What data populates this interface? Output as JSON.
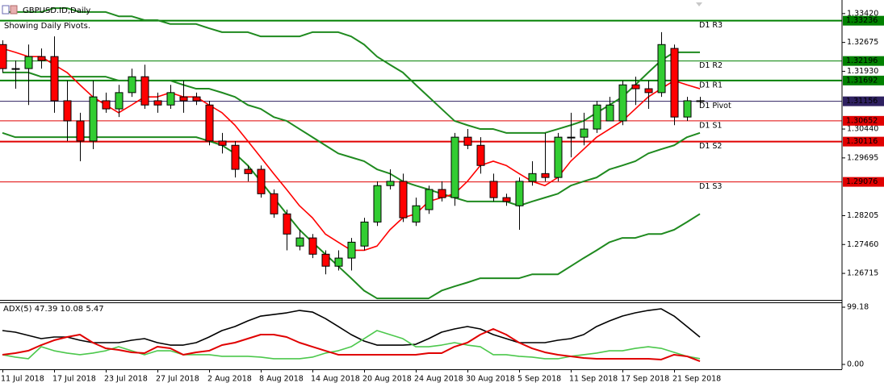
{
  "chart_data": [
    {
      "type": "candlestick",
      "title": "GBPUSD.ID,Daily",
      "subtitle": "Showing Daily Pivots.",
      "categories": [
        "11 Jul 2018",
        null,
        null,
        null,
        "17 Jul 2018",
        null,
        null,
        null,
        "23 Jul 2018",
        null,
        null,
        null,
        "27 Jul 2018",
        null,
        null,
        null,
        "2 Aug 2018",
        null,
        null,
        null,
        "8 Aug 2018",
        null,
        null,
        null,
        "14 Aug 2018",
        null,
        null,
        null,
        "20 Aug 2018",
        null,
        null,
        null,
        "24 Aug 2018",
        null,
        null,
        null,
        "30 Aug 2018",
        null,
        null,
        null,
        "5 Sep 2018",
        null,
        null,
        null,
        "11 Sep 2018",
        null,
        null,
        null,
        "17 Sep 2018",
        null,
        null,
        null,
        "21 Sep 2018",
        null,
        null
      ],
      "open": [
        1.3262,
        1.32,
        1.32,
        1.3231,
        1.3231,
        1.3117,
        1.3065,
        1.3013,
        1.3117,
        1.3096,
        1.3138,
        1.3179,
        1.3117,
        1.3106,
        1.3127,
        1.3127,
        1.3106,
        1.3013,
        1.3002,
        1.294,
        1.294,
        1.2877,
        1.2825,
        1.2742,
        1.2763,
        1.2721,
        1.269,
        1.2711,
        1.2742,
        1.2804,
        1.2898,
        1.2909,
        1.2804,
        1.2836,
        1.2888,
        1.2867,
        1.3023,
        1.3002,
        1.2909,
        1.2867,
        1.2846,
        1.2909,
        1.2929,
        1.2919,
        1.3023,
        1.3023,
        1.3044,
        1.3065,
        1.3065,
        1.3158,
        1.3148,
        1.3138,
        1.3252,
        1.3075,
        1.3117
      ],
      "high": [
        1.3273,
        1.3221,
        1.3262,
        1.3252,
        1.3283,
        1.3169,
        1.3086,
        1.3169,
        1.3138,
        1.3158,
        1.32,
        1.321,
        1.3138,
        1.3158,
        1.3169,
        1.3138,
        1.3117,
        1.3034,
        1.3013,
        1.295,
        1.295,
        1.2888,
        1.2836,
        1.2784,
        1.2773,
        1.2731,
        1.2731,
        1.2763,
        1.2815,
        1.2909,
        1.294,
        1.2929,
        1.2867,
        1.2898,
        1.2909,
        1.3034,
        1.3044,
        1.3023,
        1.2929,
        1.2877,
        1.2919,
        1.2961,
        1.3034,
        1.3034,
        1.3086,
        1.3086,
        1.3117,
        1.3127,
        1.3169,
        1.3179,
        1.3169,
        1.3294,
        1.3262,
        1.3127,
        1.3127
      ],
      "low": [
        1.319,
        1.3148,
        1.3106,
        1.32,
        1.3086,
        1.3013,
        1.2961,
        1.2992,
        1.3086,
        1.3075,
        1.3127,
        1.3096,
        1.3086,
        1.3096,
        1.3086,
        1.3106,
        1.3002,
        1.2981,
        1.2919,
        1.2909,
        1.2867,
        1.2815,
        1.2731,
        1.2731,
        1.2711,
        1.2669,
        1.2679,
        1.2679,
        1.2731,
        1.2794,
        1.2888,
        1.2804,
        1.2794,
        1.2825,
        1.2857,
        1.2846,
        1.2992,
        1.2929,
        1.2857,
        1.2846,
        1.2784,
        1.2898,
        1.2909,
        1.2909,
        1.2971,
        1.3002,
        1.3034,
        1.3065,
        1.3054,
        1.3106,
        1.3096,
        1.3127,
        1.3054,
        1.3065,
        1.3106
      ],
      "close": [
        1.32,
        1.32,
        1.3231,
        1.3221,
        1.3117,
        1.3065,
        1.3013,
        1.3127,
        1.3096,
        1.3138,
        1.3179,
        1.3106,
        1.3106,
        1.3138,
        1.3117,
        1.3117,
        1.3013,
        1.3002,
        1.294,
        1.2929,
        1.2877,
        1.2825,
        1.2773,
        1.2763,
        1.2721,
        1.269,
        1.2711,
        1.2752,
        1.2804,
        1.2898,
        1.2909,
        1.2815,
        1.2846,
        1.2888,
        1.2867,
        1.3023,
        1.3002,
        1.295,
        1.2867,
        1.2857,
        1.2909,
        1.2929,
        1.2919,
        1.3023,
        1.3023,
        1.3044,
        1.3106,
        1.3106,
        1.3158,
        1.3148,
        1.3138,
        1.3262,
        1.3075,
        1.3117,
        1.3117
      ],
      "up_color": "#32cd32",
      "down_color": "#ff0000",
      "doji_color": "#000000",
      "series": [
        {
          "color": "#1f8a1f",
          "width": 2,
          "values": [
            1.3346,
            1.3346,
            1.3346,
            1.3346,
            1.3356,
            1.3356,
            1.3346,
            1.3346,
            1.3346,
            1.3335,
            1.3335,
            1.3325,
            1.3325,
            1.3315,
            1.3315,
            1.3315,
            1.3304,
            1.3294,
            1.3294,
            1.3294,
            1.3283,
            1.3283,
            1.3283,
            1.3283,
            1.3294,
            1.3294,
            1.3294,
            1.3283,
            1.3262,
            1.3231,
            1.321,
            1.319,
            1.3158,
            1.3127,
            1.3096,
            1.3065,
            1.3054,
            1.3044,
            1.3044,
            1.3034,
            1.3034,
            1.3034,
            1.3034,
            1.3044,
            1.3054,
            1.3065,
            1.3086,
            1.3106,
            1.3127,
            1.3158,
            1.319,
            1.3221,
            1.3242,
            1.3242,
            1.3242
          ]
        },
        {
          "color": "#1f8a1f",
          "width": 2,
          "values": [
            1.319,
            1.319,
            1.319,
            1.3179,
            1.3179,
            1.3179,
            1.3179,
            1.3179,
            1.3179,
            1.3169,
            1.3169,
            1.3169,
            1.3169,
            1.3169,
            1.3158,
            1.3148,
            1.3148,
            1.3138,
            1.3127,
            1.3106,
            1.3096,
            1.3075,
            1.3065,
            1.3044,
            1.3023,
            1.3002,
            1.2981,
            1.2971,
            1.2961,
            1.294,
            1.2929,
            1.2909,
            1.2898,
            1.2888,
            1.2877,
            1.2867,
            1.2857,
            1.2857,
            1.2857,
            1.2857,
            1.2846,
            1.2857,
            1.2867,
            1.2877,
            1.2898,
            1.2909,
            1.2919,
            1.294,
            1.295,
            1.2961,
            1.2981,
            1.2992,
            1.3002,
            1.3023,
            1.3034
          ]
        },
        {
          "color": "#1f8a1f",
          "width": 2,
          "values": [
            1.3034,
            1.3023,
            1.3023,
            1.3023,
            1.3023,
            1.3023,
            1.3023,
            1.3023,
            1.3023,
            1.3023,
            1.3023,
            1.3023,
            1.3023,
            1.3023,
            1.3023,
            1.3023,
            1.3013,
            1.3002,
            1.2981,
            1.295,
            1.2909,
            1.2867,
            1.2825,
            1.2784,
            1.2752,
            1.2721,
            1.269,
            1.2659,
            1.2627,
            1.2607,
            1.2607,
            1.2607,
            1.2607,
            1.2607,
            1.2627,
            1.2638,
            1.2648,
            1.2659,
            1.2659,
            1.2659,
            1.2659,
            1.2669,
            1.2669,
            1.2669,
            1.269,
            1.2711,
            1.2731,
            1.2752,
            1.2763,
            1.2763,
            1.2773,
            1.2773,
            1.2784,
            1.2804,
            1.2825
          ]
        },
        {
          "color": "#ff0000",
          "width": 1.6,
          "values": [
            1.3252,
            1.3242,
            1.3231,
            1.3231,
            1.321,
            1.319,
            1.3158,
            1.3127,
            1.3106,
            1.3086,
            1.3106,
            1.3127,
            1.3127,
            1.3138,
            1.3127,
            1.3127,
            1.3106,
            1.3086,
            1.3054,
            1.3013,
            1.2971,
            1.2929,
            1.2888,
            1.2846,
            1.2815,
            1.2773,
            1.2752,
            1.2731,
            1.2731,
            1.2742,
            1.2784,
            1.2815,
            1.2825,
            1.2857,
            1.2867,
            1.2877,
            1.2909,
            1.295,
            1.2961,
            1.295,
            1.2929,
            1.2909,
            1.2898,
            1.2919,
            1.2961,
            1.2992,
            1.3023,
            1.3044,
            1.3065,
            1.3096,
            1.3127,
            1.3148,
            1.3169,
            1.3158,
            1.3148
          ]
        }
      ],
      "pivots": [
        {
          "label": "D1 R3",
          "value": 1.33236,
          "color": "#008000",
          "width": 2
        },
        {
          "label": "D1 R2",
          "value": 1.32196,
          "color": "#008000",
          "width": 1
        },
        {
          "label": "D1 R1",
          "value": 1.31692,
          "color": "#008000",
          "width": 2
        },
        {
          "label": "D1 Pivot",
          "value": 1.31156,
          "color": "#2e2060",
          "width": 1
        },
        {
          "label": "D1 S1",
          "value": 1.30652,
          "color": "#e00000",
          "width": 1
        },
        {
          "label": "D1 S2",
          "value": 1.30116,
          "color": "#e00000",
          "width": 2
        },
        {
          "label": "D1 S3",
          "value": 1.29076,
          "color": "#e00000",
          "width": 1
        }
      ],
      "ylim": [
        1.2603,
        1.3377
      ],
      "yticks": [
        {
          "value": 1.3342,
          "label": "1.33420"
        },
        1.32675,
        {
          "value": 1.3193,
          "label": "1.31930"
        },
        {
          "value": 1.3044,
          "label": "1.30440"
        },
        1.29695,
        1.28205,
        {
          "value": 1.2746,
          "label": "1.27460"
        },
        1.26715
      ]
    },
    {
      "type": "line",
      "title": "ADX(5) 47.39 10.08 5.47",
      "series": [
        {
          "color": "#000000",
          "width": 1.6,
          "values": [
            58.7,
            55.9,
            50.3,
            44.7,
            47.5,
            47.5,
            41.9,
            37.7,
            37.7,
            37.7,
            41.9,
            44.7,
            37.7,
            33.5,
            33.5,
            37.7,
            47.5,
            58.7,
            65.7,
            75.4,
            83.8,
            86.6,
            89.4,
            93.6,
            90.8,
            79.6,
            65.7,
            51.7,
            40.5,
            33.5,
            33.5,
            33.5,
            34.9,
            44.7,
            55.9,
            61.5,
            65.7,
            61.5,
            51.7,
            44.7,
            37.7,
            37.7,
            37.7,
            41.9,
            44.7,
            51.7,
            65.7,
            75.4,
            83.8,
            89.4,
            93.6,
            96.4,
            83.8,
            65.7,
            47.39
          ]
        },
        {
          "color": "#4cc84c",
          "width": 1.6,
          "values": [
            16.8,
            12.6,
            9.8,
            30.7,
            23.7,
            19.6,
            16.8,
            19.6,
            23.7,
            30.7,
            23.7,
            16.8,
            23.7,
            23.7,
            16.8,
            16.8,
            16.8,
            14.0,
            14.0,
            14.0,
            12.6,
            9.8,
            9.8,
            9.8,
            12.6,
            19.6,
            23.7,
            30.7,
            44.7,
            58.7,
            51.7,
            44.7,
            30.7,
            30.7,
            33.5,
            37.7,
            33.5,
            30.7,
            16.8,
            16.8,
            14.0,
            12.6,
            9.8,
            9.8,
            14.0,
            16.8,
            19.6,
            23.7,
            23.7,
            27.9,
            30.7,
            27.9,
            21.0,
            14.0,
            10.08
          ]
        },
        {
          "color": "#e00000",
          "width": 2,
          "values": [
            16.8,
            19.6,
            23.7,
            33.5,
            41.9,
            47.5,
            51.7,
            37.7,
            27.9,
            25.1,
            21.0,
            19.6,
            30.7,
            27.9,
            16.8,
            21.0,
            23.7,
            33.5,
            37.7,
            44.7,
            51.7,
            51.7,
            47.5,
            37.7,
            30.7,
            23.7,
            16.8,
            16.8,
            16.8,
            16.8,
            16.8,
            16.8,
            16.8,
            19.6,
            19.6,
            30.7,
            37.7,
            51.7,
            61.5,
            51.7,
            37.7,
            27.9,
            21.0,
            16.8,
            14.0,
            11.2,
            9.8,
            9.8,
            9.8,
            9.8,
            9.8,
            8.4,
            16.8,
            14.0,
            5.47
          ]
        }
      ],
      "ylim": [
        -8.4,
        107.6
      ],
      "yticks": [
        99.18,
        {
          "value": 0,
          "label": "0.00"
        }
      ]
    }
  ]
}
